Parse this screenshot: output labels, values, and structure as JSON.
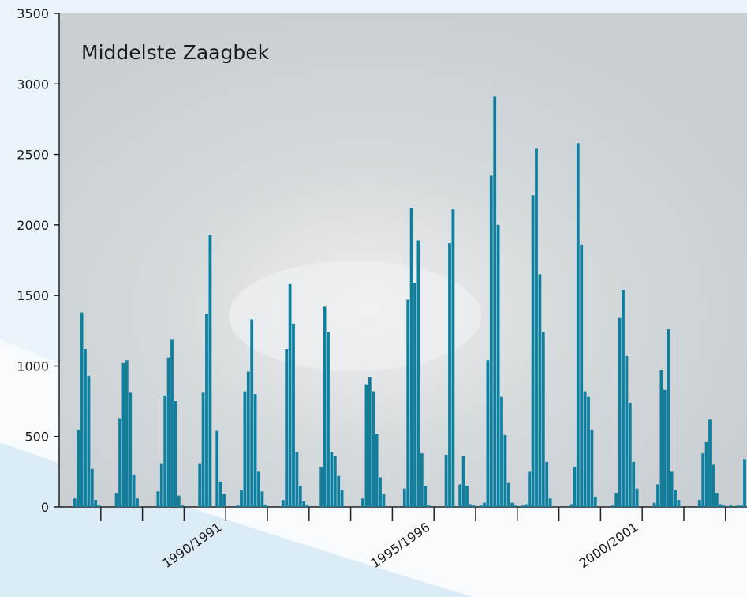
{
  "chart_data": {
    "type": "bar",
    "title": "Middelste Zaagbek",
    "color": "#0f7f9f",
    "categories": [
      null,
      null,
      null,
      null,
      "1990/1991",
      null,
      null,
      null,
      null,
      "1995/1996",
      null,
      null,
      null,
      null,
      "2000/2001",
      null,
      null
    ],
    "values": [
      [
        0,
        0,
        0,
        0,
        60,
        550,
        1380,
        1120,
        930,
        270,
        50,
        10
      ],
      [
        0,
        0,
        0,
        0,
        100,
        630,
        1020,
        1040,
        810,
        230,
        60,
        0
      ],
      [
        0,
        0,
        0,
        0,
        110,
        310,
        790,
        1060,
        1190,
        750,
        80,
        10
      ],
      [
        0,
        0,
        0,
        0,
        310,
        810,
        1370,
        1930,
        0,
        540,
        180,
        90
      ],
      [
        0,
        0,
        0,
        10,
        120,
        820,
        960,
        1330,
        800,
        250,
        110,
        15
      ],
      [
        0,
        0,
        0,
        0,
        50,
        1120,
        1580,
        1300,
        390,
        150,
        40,
        10
      ],
      [
        0,
        0,
        0,
        280,
        1420,
        1240,
        390,
        360,
        220,
        120,
        0,
        0
      ],
      [
        0,
        0,
        0,
        60,
        870,
        920,
        820,
        520,
        210,
        90,
        0,
        0
      ],
      [
        0,
        0,
        0,
        130,
        1470,
        2120,
        1590,
        1890,
        380,
        150,
        10,
        0
      ],
      [
        0,
        0,
        0,
        370,
        1870,
        2110,
        0,
        160,
        360,
        150,
        20,
        10
      ],
      [
        0,
        10,
        30,
        1040,
        2350,
        2910,
        2000,
        780,
        510,
        170,
        30,
        10
      ],
      [
        0,
        10,
        20,
        250,
        2210,
        2540,
        1650,
        1240,
        320,
        60,
        0,
        0
      ],
      [
        0,
        0,
        0,
        20,
        280,
        2580,
        1860,
        820,
        780,
        550,
        70,
        0
      ],
      [
        0,
        0,
        0,
        10,
        100,
        1340,
        1540,
        1070,
        740,
        320,
        130,
        0
      ],
      [
        0,
        0,
        0,
        30,
        160,
        970,
        830,
        1260,
        250,
        120,
        50,
        0
      ],
      [
        0,
        0,
        0,
        0,
        50,
        380,
        460,
        620,
        300,
        100,
        20,
        10
      ],
      [
        0,
        10,
        0,
        10,
        10,
        340
      ]
    ],
    "ylim": [
      0,
      3500
    ],
    "yticks": [
      0,
      500,
      1000,
      1500,
      2000,
      2500,
      3000,
      3500
    ]
  }
}
